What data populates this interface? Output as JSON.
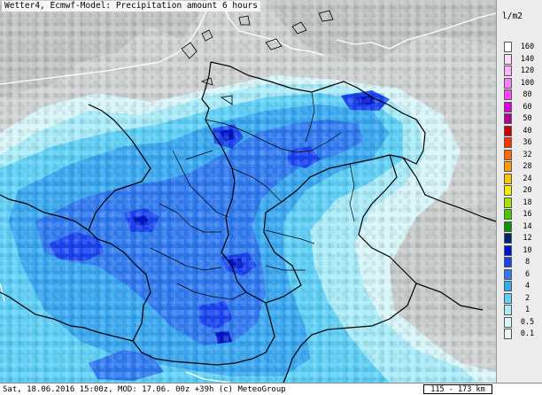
{
  "header": {
    "title": "Wetter4, Ecmwf-Model: Precipitation amount 6 hours"
  },
  "footer": {
    "run_info": "Sat, 18.06.2016 15:00z, MOD: 17.06. 00z +39h (c) MeteoGroup",
    "scale_label": "115 - 173 km"
  },
  "legend": {
    "unit": "l/m2",
    "classes": [
      {
        "label": "160",
        "color": "#ffffff"
      },
      {
        "label": "140",
        "color": "#ffd9ff"
      },
      {
        "label": "120",
        "color": "#ffb0ff"
      },
      {
        "label": "100",
        "color": "#ff80ff"
      },
      {
        "label": "80",
        "color": "#ff44ff"
      },
      {
        "label": "60",
        "color": "#e000e0"
      },
      {
        "label": "50",
        "color": "#b00090"
      },
      {
        "label": "40",
        "color": "#d00000"
      },
      {
        "label": "36",
        "color": "#ff3000"
      },
      {
        "label": "32",
        "color": "#ff6a00"
      },
      {
        "label": "28",
        "color": "#ff9a00"
      },
      {
        "label": "24",
        "color": "#ffc400"
      },
      {
        "label": "20",
        "color": "#f2ec00"
      },
      {
        "label": "18",
        "color": "#a8e000"
      },
      {
        "label": "16",
        "color": "#44c800"
      },
      {
        "label": "14",
        "color": "#009a00"
      },
      {
        "label": "12",
        "color": "#00236f"
      },
      {
        "label": "10",
        "color": "#0014c8"
      },
      {
        "label": "8",
        "color": "#1a44f0"
      },
      {
        "label": "6",
        "color": "#2f7af0"
      },
      {
        "label": "4",
        "color": "#38a8f0"
      },
      {
        "label": "2",
        "color": "#5fd0f5"
      },
      {
        "label": "1",
        "color": "#a8ecf8"
      },
      {
        "label": "0.5",
        "color": "#d8f5f7"
      },
      {
        "label": "0.1",
        "color": "#eef3f3"
      }
    ]
  }
}
